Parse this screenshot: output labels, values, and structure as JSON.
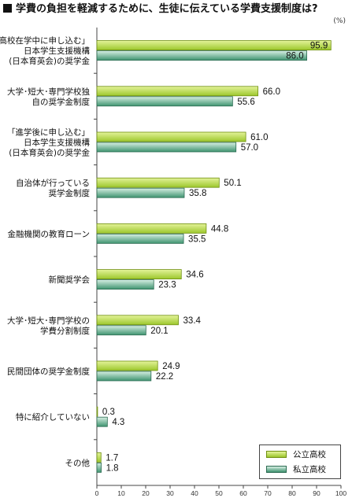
{
  "title": "学費の負担を軽減するために、生徒に伝えている学費支援制度は?",
  "unit": "(%)",
  "legend": {
    "public": "公立高校",
    "private": "私立高校"
  },
  "colors": {
    "public_light": "#e4f39a",
    "public_dark": "#9cc72c",
    "public_border": "#6f8f10",
    "private_light": "#d7efe3",
    "private_dark": "#3f9470",
    "private_border": "#2c6b52"
  },
  "chart_data": {
    "type": "bar",
    "orientation": "horizontal",
    "title": "学費の負担を軽減するために、生徒に伝えている学費支援制度は?",
    "xlim": [
      0,
      100
    ],
    "x_ticks": [
      0,
      10,
      20,
      30,
      40,
      50,
      60,
      70,
      80,
      90,
      100
    ],
    "categories": [
      [
        "「高校在学中に申し込む」",
        "日本学生支援機構",
        "(日本育英会)の奨学金"
      ],
      [
        "大学･短大･専門学校独",
        "自の奨学金制度"
      ],
      [
        "「進学後に申し込む」",
        "日本学生支援機構",
        "(日本育英会)の奨学金"
      ],
      [
        "自治体が行っている",
        "奨学金制度"
      ],
      [
        "金融機関の教育ローン"
      ],
      [
        "新聞奨学会"
      ],
      [
        "大学･短大･専門学校の",
        "学費分割制度"
      ],
      [
        "民間団体の奨学金制度"
      ],
      [
        "特に紹介していない"
      ],
      [
        "その他"
      ]
    ],
    "series": [
      {
        "name": "公立高校",
        "values": [
          95.9,
          66.0,
          61.0,
          50.1,
          44.8,
          34.6,
          33.4,
          24.9,
          0.3,
          1.7
        ],
        "labels": [
          "95.9",
          "66.0",
          "61.0",
          "50.1",
          "44.8",
          "34.6",
          "33.4",
          "24.9",
          "0.3",
          "1.7"
        ]
      },
      {
        "name": "私立高校",
        "values": [
          86.0,
          55.6,
          57.0,
          35.8,
          35.5,
          23.3,
          20.1,
          22.2,
          4.3,
          1.8
        ],
        "labels": [
          "86.0",
          "55.6",
          "57.0",
          "35.8",
          "35.5",
          "23.3",
          "20.1",
          "22.2",
          "4.3",
          "1.8"
        ]
      }
    ],
    "legend_position": "bottom-right",
    "grid": false
  }
}
